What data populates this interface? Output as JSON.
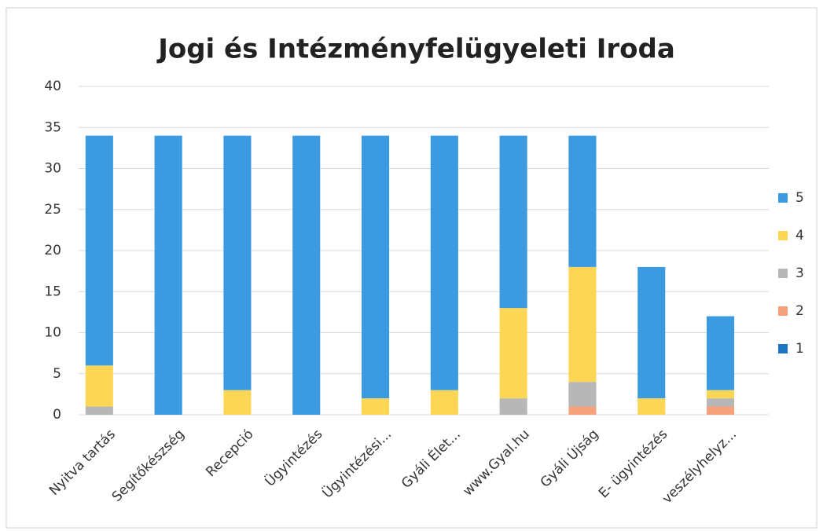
{
  "chart_data": {
    "type": "stacked_bar",
    "title": "Jogi és Intézményfelügyeleti Iroda",
    "categories": [
      "Nyitva tartás",
      "Segítőkészség",
      "Recepció",
      "Ügyintézés",
      "Ügyintézési...",
      "Gyáli Élet...",
      "www.Gyal.hu",
      "Gyáli Újság",
      "E- ügyintézés",
      "veszélyhelyz..."
    ],
    "series": [
      {
        "name": "5",
        "color": "#3c9be0",
        "values": [
          28,
          34,
          31,
          34,
          32,
          31,
          21,
          16,
          16,
          9
        ]
      },
      {
        "name": "4",
        "color": "#fdd655",
        "values": [
          5,
          0,
          3,
          0,
          2,
          3,
          11,
          14,
          2,
          1
        ]
      },
      {
        "name": "3",
        "color": "#b7b7b7",
        "values": [
          1,
          0,
          0,
          0,
          0,
          0,
          2,
          3,
          0,
          1
        ]
      },
      {
        "name": "2",
        "color": "#f5a27c",
        "values": [
          0,
          0,
          0,
          0,
          0,
          0,
          0,
          1,
          0,
          1
        ]
      },
      {
        "name": "1",
        "color": "#1f74c2",
        "values": [
          0,
          0,
          0,
          0,
          0,
          0,
          0,
          0,
          0,
          0
        ]
      }
    ],
    "ylim": [
      0,
      40
    ],
    "yticks": [
      0,
      5,
      10,
      15,
      20,
      25,
      30,
      35,
      40
    ],
    "grid": true,
    "legend": "right"
  }
}
